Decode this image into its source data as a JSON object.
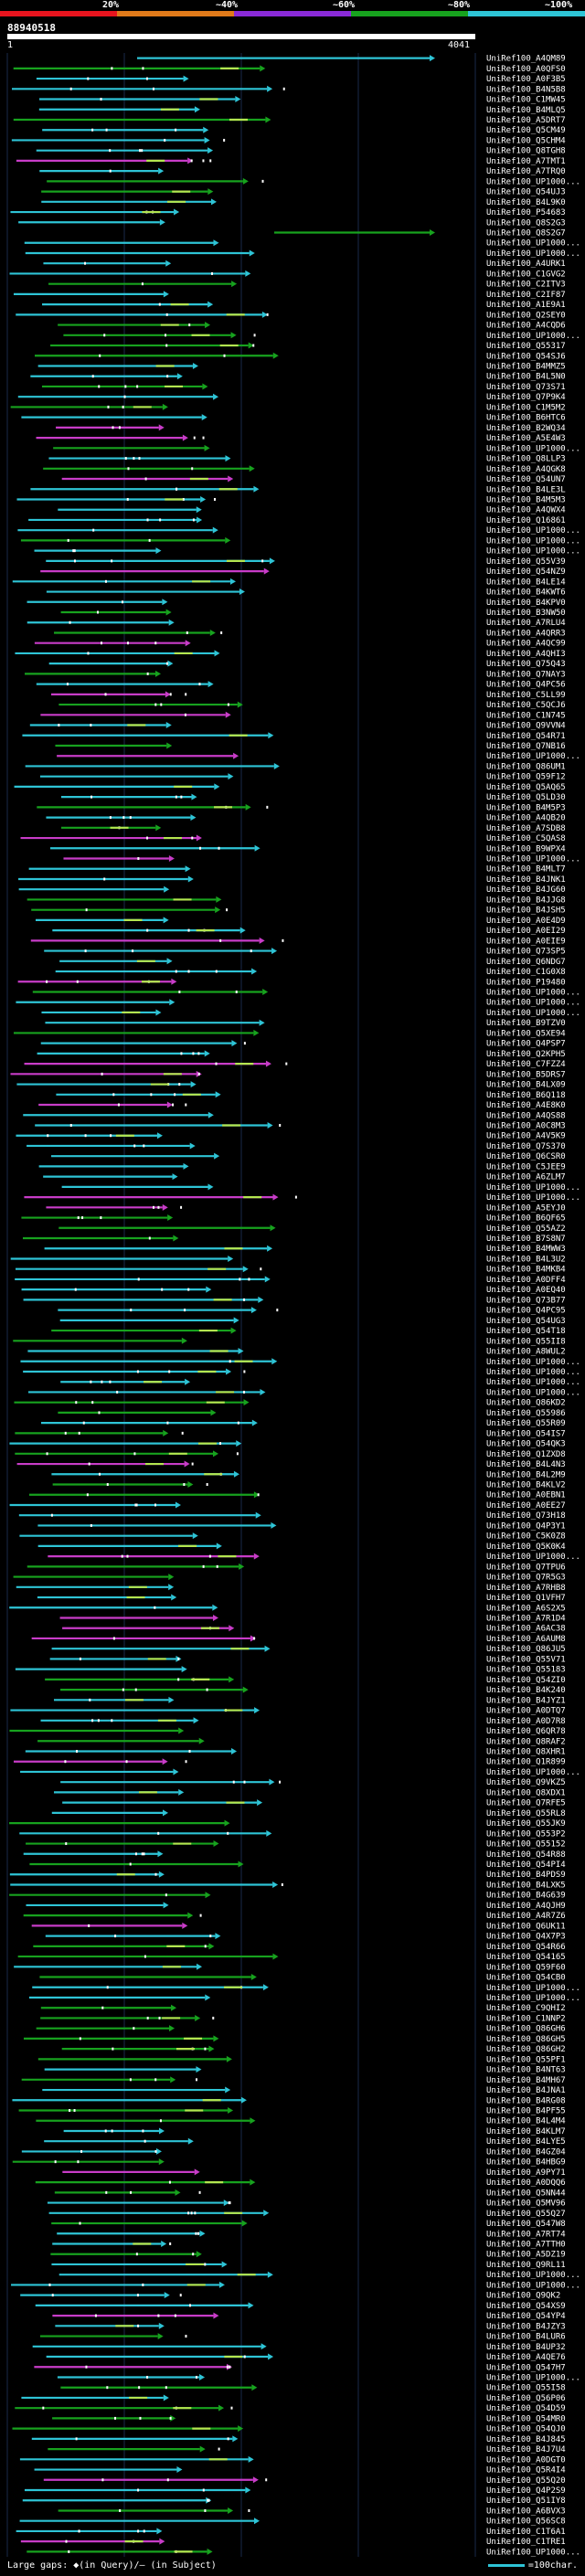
{
  "legend": {
    "ticks": [
      "20%",
      "~40%",
      "~60%",
      "~80%",
      "~100%"
    ],
    "colors": [
      "#e8141e",
      "#e07a1a",
      "#8a2ad8",
      "#17a21e",
      "#2ec4d6"
    ]
  },
  "query": {
    "id": "88940518",
    "scale_start": "1",
    "scale_end": "4041"
  },
  "footer": {
    "gaps_text": "Large gaps: ◆(in Query)/– (in Subject)",
    "key_text": "=100char."
  },
  "colors": {
    "cyan": "#2ec4d6",
    "green": "#17a21e",
    "magenta": "#c83cc8",
    "lightgreen": "#b4e650",
    "white": "#ffffff"
  },
  "chart_data": {
    "type": "alignment-hits",
    "query_length": 4041,
    "hits": [
      "UniRef100_A4QM89",
      "UniRef100_A0QFS0",
      "UniRef100_A0F3B5",
      "UniRef100_B4N5B8",
      "UniRef100_C1MW45",
      "UniRef100_B4MLQ5",
      "UniRef100_A5DRT7",
      "UniRef100_Q5CM49",
      "UniRef100_Q5CHM4",
      "UniRef100_Q8TGH8",
      "UniRef100_A7TMT1",
      "UniRef100_A7TRQ0",
      "UniRef100_UP1000...",
      "UniRef100_Q54UJ3",
      "UniRef100_B4L9K0",
      "UniRef100_P54683",
      "UniRef100_Q8S2G3",
      "UniRef100_Q8S2G7",
      "UniRef100_UP1000...",
      "UniRef100_UP1000...",
      "UniRef100_A4URK1",
      "UniRef100_C1GVG2",
      "UniRef100_C2ITV3",
      "UniRef100_C2IF87",
      "UniRef100_A1E9A1",
      "UniRef100_Q2SEY0",
      "UniRef100_A4CQD6",
      "UniRef100_UP1000...",
      "UniRef100_Q55317",
      "UniRef100_Q54SJ6",
      "UniRef100_B4MMZ5",
      "UniRef100_B4L5N0",
      "UniRef100_Q73S71",
      "UniRef100_Q7P9K4",
      "UniRef100_C1M5M2",
      "UniRef100_B6HTC6",
      "UniRef100_B2WQ34",
      "UniRef100_A5E4W3",
      "UniRef100_UP1000...",
      "UniRef100_Q8LLP3",
      "UniRef100_A4QGK8",
      "UniRef100_Q54UN7",
      "UniRef100_B4LE3L",
      "UniRef100_B4M5M3",
      "UniRef100_A4QWX4",
      "UniRef100_Q16861",
      "UniRef100_UP1000...",
      "UniRef100_UP1000...",
      "UniRef100_UP1000...",
      "UniRef100_Q55V39",
      "UniRef100_Q54NZ9",
      "UniRef100_B4LE14",
      "UniRef100_B4KWT6",
      "UniRef100_B4KPV0",
      "UniRef100_B3NW50",
      "UniRef100_A7RLU4",
      "UniRef100_A4QRR3",
      "UniRef100_A4QC99",
      "UniRef100_A4QHI3",
      "UniRef100_Q75Q43",
      "UniRef100_Q7NAY3",
      "UniRef100_Q4PC56",
      "UniRef100_C5LL99",
      "UniRef100_C5QCJ6",
      "UniRef100_C1N745",
      "UniRef100_Q9VVN4",
      "UniRef100_Q54R71",
      "UniRef100_Q7NB16",
      "UniRef100_UP1000...",
      "UniRef100_Q86UM1",
      "UniRef100_Q59F12",
      "UniRef100_Q5AQ65",
      "UniRef100_Q5LD30",
      "UniRef100_B4M5P3",
      "UniRef100_A4QB20",
      "UniRef100_A7SDB8",
      "UniRef100_C5QAS8",
      "UniRef100_B9WPX4",
      "UniRef100_UP1000...",
      "UniRef100_B4MLT7",
      "UniRef100_B4JNK1",
      "UniRef100_B4JG60",
      "UniRef100_B4JJG8",
      "UniRef100_B4JSH5",
      "UniRef100_A0E4D9",
      "UniRef100_A0EI29",
      "UniRef100_A0EIE9",
      "UniRef100_Q73SP5",
      "UniRef100_Q6NDG7",
      "UniRef100_C1G0X8",
      "UniRef100_P19480",
      "UniRef100_UP1000...",
      "UniRef100_UP1000...",
      "UniRef100_UP1000...",
      "UniRef100_B9TZV0",
      "UniRef100_Q5XE94",
      "UniRef100_Q4PSP7",
      "UniRef100_Q2KPH5",
      "UniRef100_C7FZZ4",
      "UniRef100_B5DRS7",
      "UniRef100_B4LX09",
      "UniRef100_B6Q118",
      "UniRef100_A4E8K0",
      "UniRef100_A4QS88",
      "UniRef100_A0C8M3",
      "UniRef100_A4V5K9",
      "UniRef100_Q7S370",
      "UniRef100_Q6CSR0",
      "UniRef100_C5JEE9",
      "UniRef100_A6ZLM7",
      "UniRef100_UP1000...",
      "UniRef100_UP1000...",
      "UniRef100_A5EYJ0",
      "UniRef100_B6QF65",
      "UniRef100_Q55AZ2",
      "UniRef100_B7S8N7",
      "UniRef100_B4MWW3",
      "UniRef100_B4L3U2",
      "UniRef100_B4MKB4",
      "UniRef100_A0DFF4",
      "UniRef100_A0EQ40",
      "UniRef100_Q73B77",
      "UniRef100_Q4PC95",
      "UniRef100_Q54UG3",
      "UniRef100_Q54T18",
      "UniRef100_Q55II8",
      "UniRef100_A8WUL2",
      "UniRef100_UP1000...",
      "UniRef100_UP1000...",
      "UniRef100_UP1000...",
      "UniRef100_UP1000...",
      "UniRef100_Q86KD2",
      "UniRef100_Q55986",
      "UniRef100_Q55R09",
      "UniRef100_Q54IS7",
      "UniRef100_Q54QK3",
      "UniRef100_Q1ZXD8",
      "UniRef100_B4L4N3",
      "UniRef100_B4L2M9",
      "UniRef100_B4KLV2",
      "UniRef100_A0EBN1",
      "UniRef100_A0EE27",
      "UniRef100_Q73H18",
      "UniRef100_Q4P3Y1",
      "UniRef100_C5K0Z8",
      "UniRef100_Q5K0K4",
      "UniRef100_UP1000...",
      "UniRef100_Q7TPU6",
      "UniRef100_Q7R5G3",
      "UniRef100_A7RHB8",
      "UniRef100_Q1VFH7",
      "UniRef100_A6S2X5",
      "UniRef100_A7R1D4",
      "UniRef100_A6AC38",
      "UniRef100_A6AUM8",
      "UniRef100_Q86JU5",
      "UniRef100_Q55V71",
      "UniRef100_Q55183",
      "UniRef100_Q54ZI0",
      "UniRef100_B4K240",
      "UniRef100_B4JYZ1",
      "UniRef100_A0DTQ7",
      "UniRef100_A0D7R8",
      "UniRef100_Q6QR78",
      "UniRef100_Q8RAF2",
      "UniRef100_Q8XHR1",
      "UniRef100_Q1R899",
      "UniRef100_UP1000...",
      "UniRef100_Q9VKZ5",
      "UniRef100_Q8XDX1",
      "UniRef100_Q7RFE5",
      "UniRef100_Q55RL8",
      "UniRef100_Q55JK9",
      "UniRef100_Q553P2",
      "UniRef100_Q55152",
      "UniRef100_Q54R88",
      "UniRef100_Q54PI4",
      "UniRef100_B4PDS9",
      "UniRef100_B4LXK5",
      "UniRef100_B4G639",
      "UniRef100_A4QJH9",
      "UniRef100_A4R7Z6",
      "UniRef100_Q6UK11",
      "UniRef100_Q4X7P3",
      "UniRef100_Q54R66",
      "UniRef100_Q54165",
      "UniRef100_Q59F60",
      "UniRef100_Q54CB0",
      "UniRef100_UP1000...",
      "UniRef100_UP1000...",
      "UniRef100_C9QHI2",
      "UniRef100_C1NNP2",
      "UniRef100_Q86GH6",
      "UniRef100_Q86GH5",
      "UniRef100_Q86GH2",
      "UniRef100_Q55PF1",
      "UniRef100_B4NT63",
      "UniRef100_B4MH67",
      "UniRef100_B4JNA1",
      "UniRef100_B4RG08",
      "UniRef100_B4PF55",
      "UniRef100_B4L4M4",
      "UniRef100_B4KLM7",
      "UniRef100_B4LYE5",
      "UniRef100_B4GZ04",
      "UniRef100_B4HBG9",
      "UniRef100_A9PY71",
      "UniRef100_A0DQQ6",
      "UniRef100_Q5NN44",
      "UniRef100_Q5MV96",
      "UniRef100_Q55Q27",
      "UniRef100_Q547W8",
      "UniRef100_A7RT74",
      "UniRef100_A7TTH0",
      "UniRef100_A5DZ19",
      "UniRef100_Q9RL11",
      "UniRef100_UP1000...",
      "UniRef100_UP1000...",
      "UniRef100_Q9QK2",
      "UniRef100_Q54XS9",
      "UniRef100_Q54YP4",
      "UniRef100_B4JZY3",
      "UniRef100_B4LUR6",
      "UniRef100_B4UP32",
      "UniRef100_A4QE76",
      "UniRef100_Q547H7",
      "UniRef100_UP1000...",
      "UniRef100_Q55I58",
      "UniRef100_Q56P06",
      "UniRef100_Q54D59",
      "UniRef100_Q54MR0",
      "UniRef100_Q54QJ0",
      "UniRef100_B4J845",
      "UniRef100_B4J7U4",
      "UniRef100_A0DGT0",
      "UniRef100_Q5R4I4",
      "UniRef100_Q55Q20",
      "UniRef100_Q4P2S9",
      "UniRef100_Q51IY8",
      "UniRef100_A6BVX3",
      "UniRef100_Q56SC8",
      "UniRef100_C1T6A1",
      "UniRef100_C1TRE1",
      "UniRef100_UP1000..."
    ]
  }
}
